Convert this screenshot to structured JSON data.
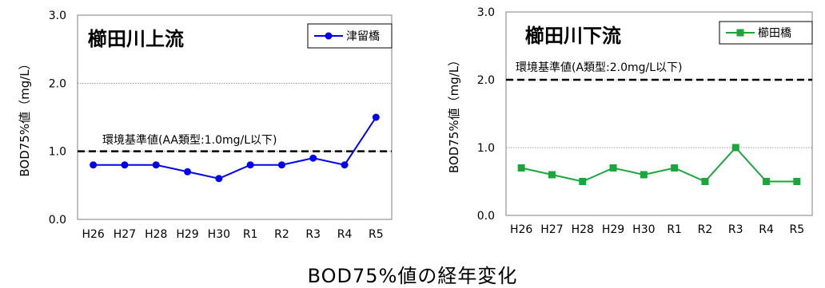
{
  "caption": "BOD75%値の経年変化",
  "chart_data": [
    {
      "type": "line",
      "title": "櫛田川上流",
      "ylabel": "BOD75%値（mg/L）",
      "xlabel": "",
      "categories": [
        "H26",
        "H27",
        "H28",
        "H29",
        "H30",
        "R1",
        "R2",
        "R3",
        "R4",
        "R5"
      ],
      "ylim": [
        0,
        3
      ],
      "yticks": [
        "0.0",
        "1.0",
        "2.0",
        "3.0"
      ],
      "grid": "horizontal",
      "legend_position": "top-right",
      "series": [
        {
          "name": "津留橋",
          "color": "#0000ee",
          "marker": "circle",
          "values": [
            0.8,
            0.8,
            0.8,
            0.7,
            0.6,
            0.8,
            0.8,
            0.9,
            0.8,
            1.5
          ]
        }
      ],
      "reference_line": {
        "value": 1.0,
        "label": "環境基準値(AA類型:1.0mg/L以下)"
      }
    },
    {
      "type": "line",
      "title": "櫛田川下流",
      "ylabel": "BOD75%値（mg/L）",
      "xlabel": "",
      "categories": [
        "H26",
        "H27",
        "H28",
        "H29",
        "H30",
        "R1",
        "R2",
        "R3",
        "R4",
        "R5"
      ],
      "ylim": [
        0,
        3
      ],
      "yticks": [
        "0.0",
        "1.0",
        "2.0",
        "3.0"
      ],
      "grid": "horizontal",
      "legend_position": "top-right",
      "series": [
        {
          "name": "櫛田橋",
          "color": "#1aa63a",
          "marker": "square",
          "values": [
            0.7,
            0.6,
            0.5,
            0.7,
            0.6,
            0.7,
            0.5,
            1.0,
            0.5,
            0.5
          ]
        }
      ],
      "reference_line": {
        "value": 2.0,
        "label": "環境基準値(A類型:2.0mg/L以下)"
      }
    }
  ]
}
